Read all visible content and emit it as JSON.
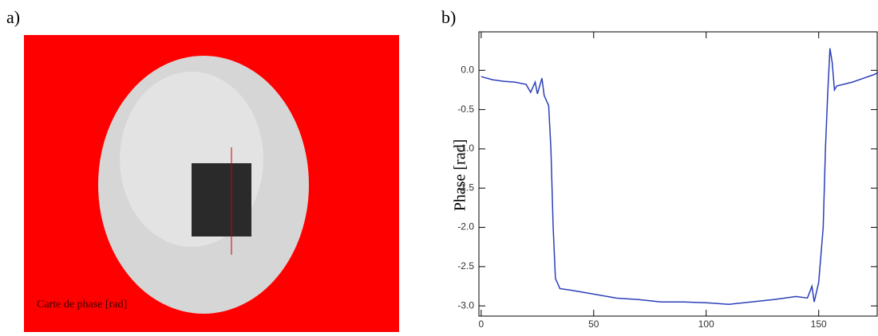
{
  "panel_a": {
    "label": "a)",
    "image_text": "Carte de phase [rad]"
  },
  "chart_data": {
    "type": "line",
    "panel_label": "b)",
    "ylabel": "Phase [rad]",
    "x": [
      0,
      5,
      10,
      15,
      20,
      22,
      24,
      25,
      27,
      28,
      30,
      31,
      32,
      33,
      35,
      40,
      50,
      60,
      70,
      80,
      90,
      100,
      110,
      120,
      130,
      140,
      145,
      147,
      148,
      150,
      152,
      153,
      154,
      155,
      156,
      157,
      158,
      165,
      170,
      175,
      178
    ],
    "series": [
      {
        "color": "#2b3fb8",
        "values": [
          -0.08,
          -0.12,
          -0.14,
          -0.15,
          -0.18,
          -0.28,
          -0.15,
          -0.3,
          -0.1,
          -0.32,
          -0.45,
          -1.0,
          -2.0,
          -2.65,
          -2.78,
          -2.8,
          -2.85,
          -2.9,
          -2.92,
          -2.95,
          -2.95,
          -2.96,
          -2.98,
          -2.95,
          -2.92,
          -2.88,
          -2.9,
          -2.75,
          -2.95,
          -2.7,
          -2.0,
          -1.0,
          -0.3,
          0.28,
          0.1,
          -0.25,
          -0.2,
          -0.15,
          -0.1,
          -0.05,
          0.0
        ]
      }
    ],
    "xlim": [
      -1,
      176
    ],
    "xticks": [
      0,
      50,
      100,
      150
    ],
    "ylim": [
      -3.13,
      0.49
    ],
    "yticks": [
      {
        "value": 0,
        "label": "0.0"
      },
      -0.5,
      {
        "value": -1,
        "label": "-1.0"
      },
      -1.5,
      {
        "value": -2,
        "label": "-2.0"
      },
      -2.5,
      {
        "value": -3,
        "label": "-3.0"
      }
    ]
  }
}
